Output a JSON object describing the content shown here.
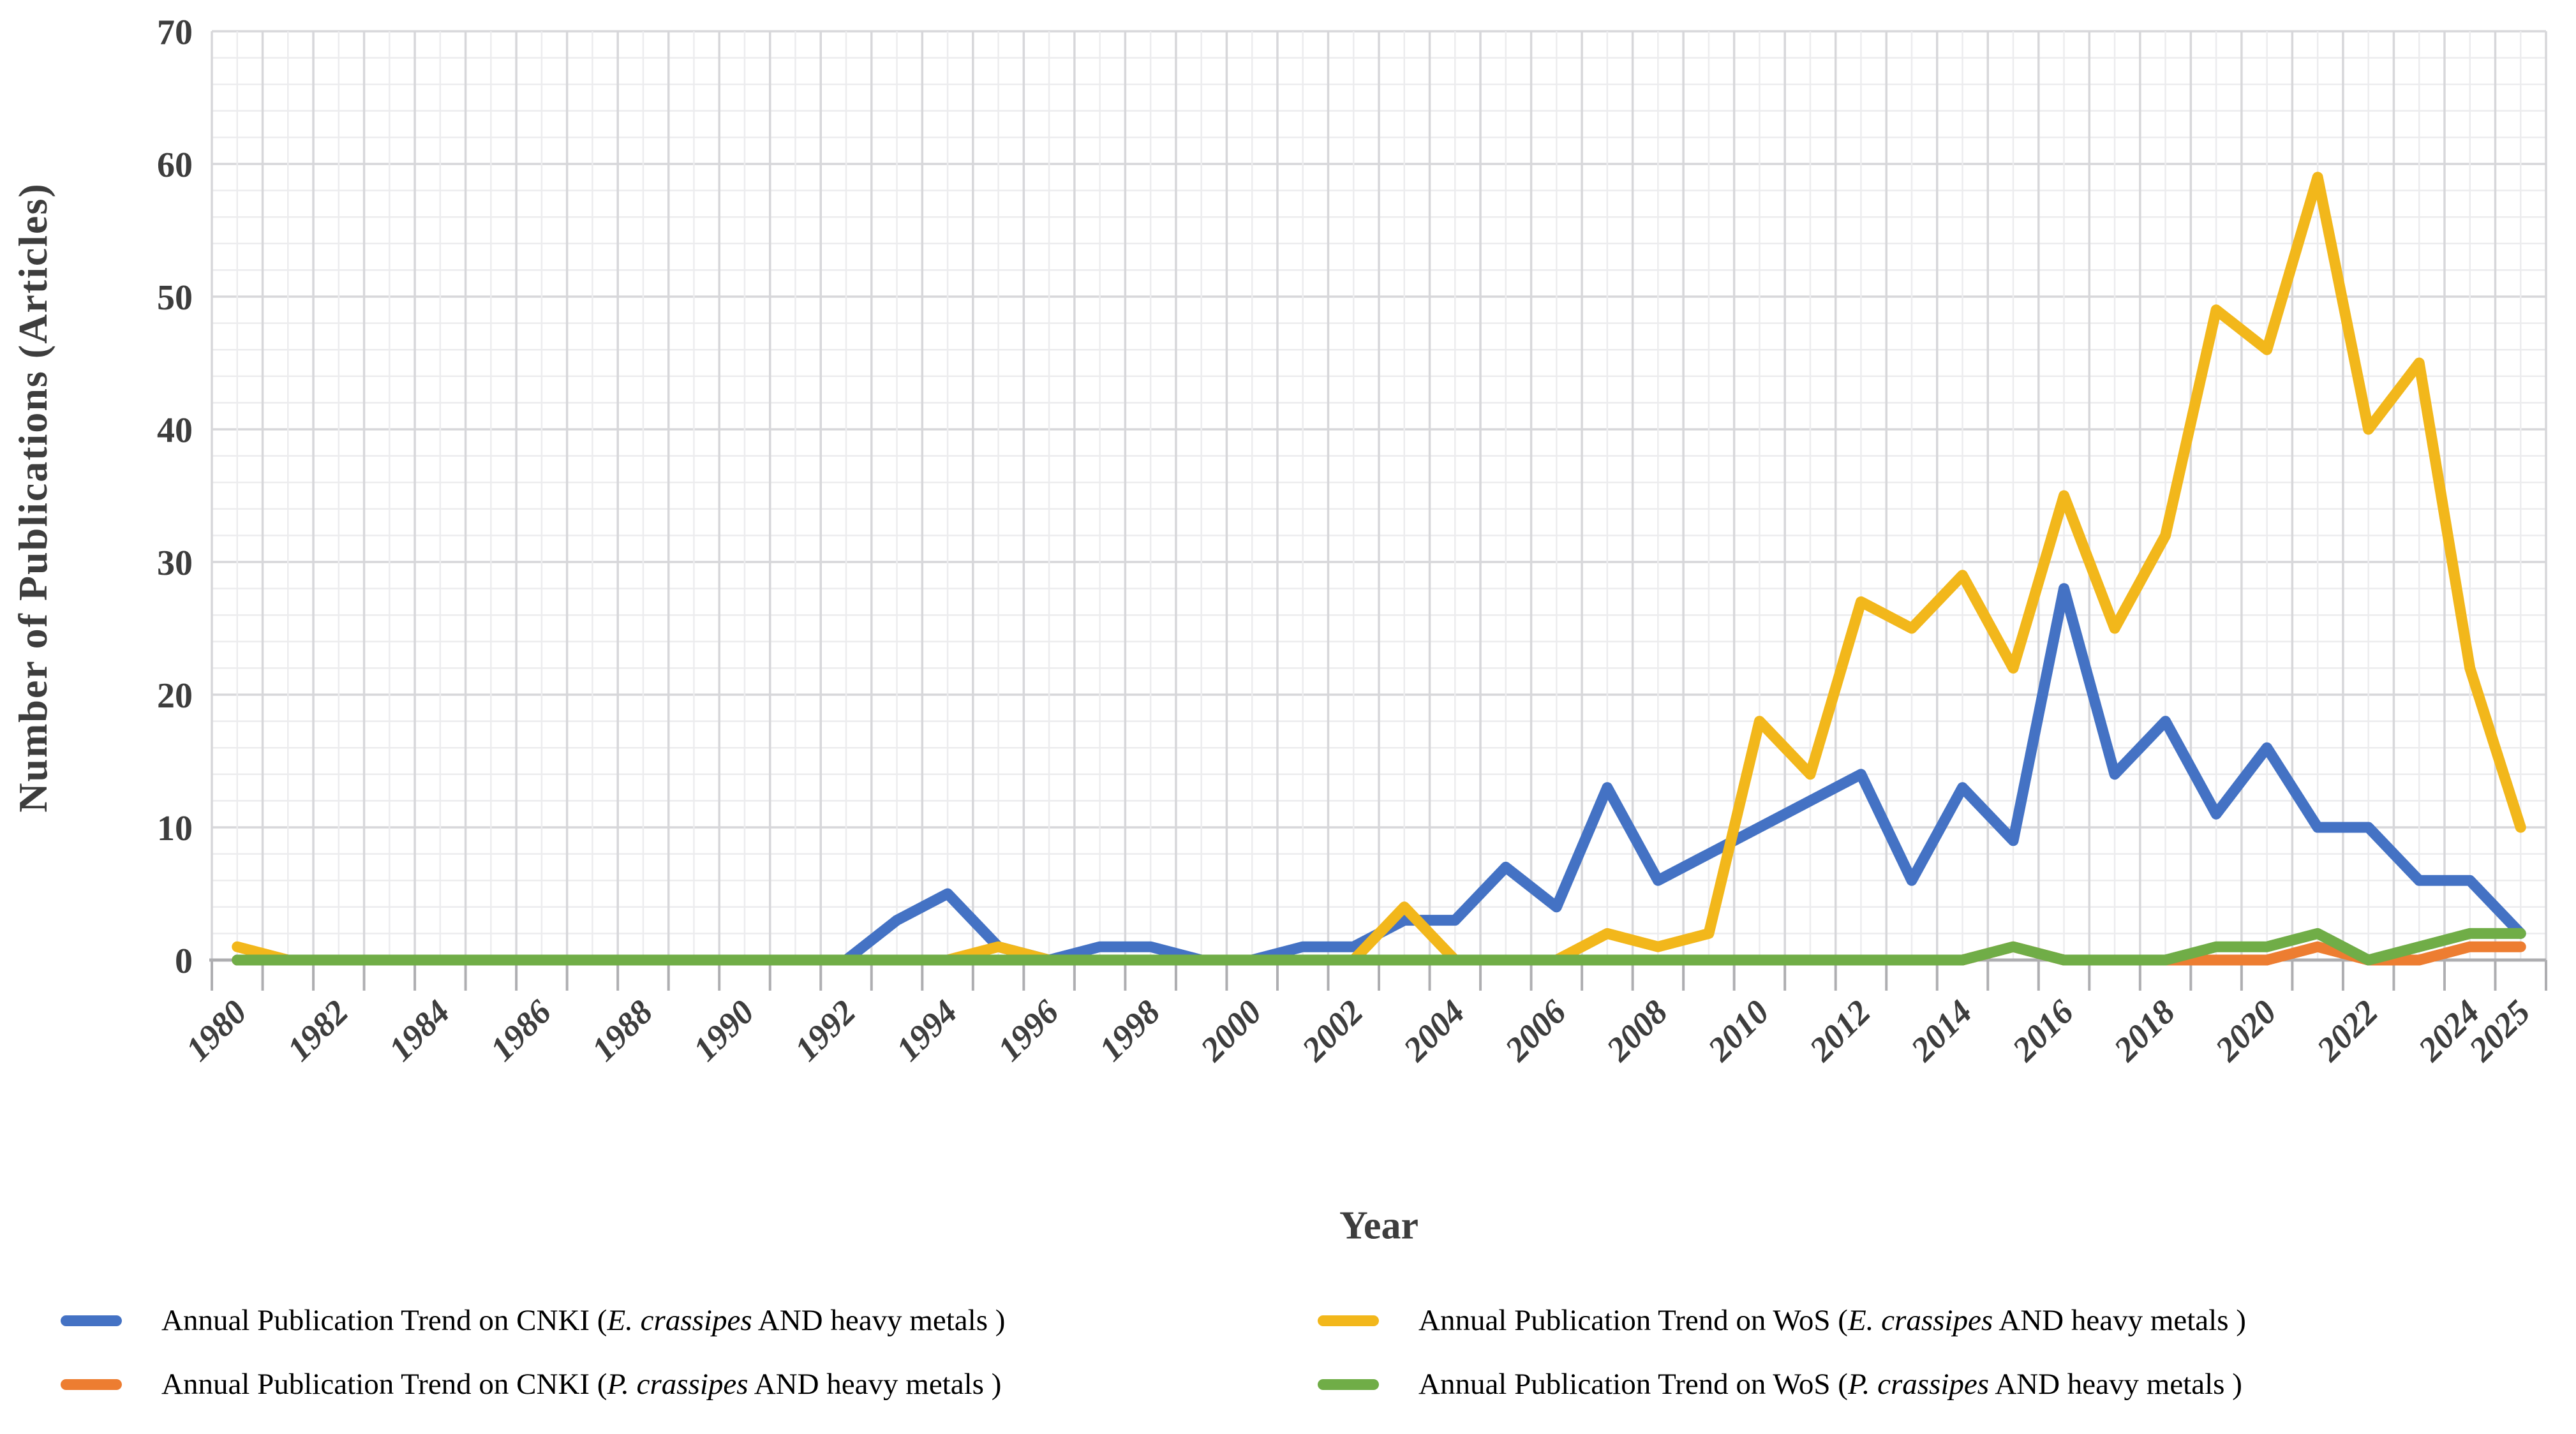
{
  "chart_data": {
    "type": "line",
    "title": "",
    "xlabel": "Year",
    "ylabel": "Number of Publications (Articles)",
    "ylim": [
      0,
      70
    ],
    "ytick_labels": [
      "0",
      "10",
      "20",
      "30",
      "40",
      "50",
      "60",
      "70"
    ],
    "xtick_labels": [
      "1980",
      "1982",
      "1984",
      "1986",
      "1988",
      "1990",
      "1992",
      "1994",
      "1996",
      "1998",
      "2000",
      "2002",
      "2004",
      "2006",
      "2008",
      "2010",
      "2012",
      "2014",
      "2016",
      "2018",
      "2020",
      "2022",
      "2024",
      "2025"
    ],
    "grid": "plaid: minor horizontal every 2 units, minor vertical every half year, majors darker",
    "legend_position": "bottom, two columns",
    "x": [
      1980,
      1981,
      1982,
      1983,
      1984,
      1985,
      1986,
      1987,
      1988,
      1989,
      1990,
      1991,
      1992,
      1993,
      1994,
      1995,
      1996,
      1997,
      1998,
      1999,
      2000,
      2001,
      2002,
      2003,
      2004,
      2005,
      2006,
      2007,
      2008,
      2009,
      2010,
      2011,
      2012,
      2013,
      2014,
      2015,
      2016,
      2017,
      2018,
      2019,
      2020,
      2021,
      2022,
      2023,
      2024,
      2025
    ],
    "series": [
      {
        "label_prefix": "Annual Publication Trend on CNKI (",
        "label_italic": "E. crassipes",
        "label_suffix": " AND heavy metals )",
        "color": "#4472C4",
        "values": [
          0,
          0,
          0,
          0,
          0,
          0,
          0,
          0,
          0,
          0,
          0,
          0,
          0,
          3,
          5,
          1,
          0,
          1,
          1,
          0,
          0,
          1,
          1,
          3,
          3,
          7,
          4,
          13,
          6,
          8,
          10,
          12,
          14,
          6,
          13,
          9,
          28,
          14,
          18,
          11,
          16,
          10,
          10,
          6,
          6,
          2
        ]
      },
      {
        "label_prefix": "Annual Publication Trend on CNKI (",
        "label_italic": "P. crassipes",
        "label_suffix": " AND heavy metals )",
        "color": "#ED7D31",
        "values": [
          0,
          0,
          0,
          0,
          0,
          0,
          0,
          0,
          0,
          0,
          0,
          0,
          0,
          0,
          0,
          0,
          0,
          0,
          0,
          0,
          0,
          0,
          0,
          0,
          0,
          0,
          0,
          0,
          0,
          0,
          0,
          0,
          0,
          0,
          0,
          1,
          0,
          0,
          0,
          0,
          0,
          1,
          0,
          0,
          1,
          1
        ]
      },
      {
        "label_prefix": "Annual Publication Trend on WoS (",
        "label_italic": "E. crassipes",
        "label_suffix": " AND heavy metals )",
        "color": "#F2B71B",
        "values": [
          1,
          0,
          0,
          0,
          0,
          0,
          0,
          0,
          0,
          0,
          0,
          0,
          0,
          0,
          0,
          1,
          0,
          0,
          0,
          0,
          0,
          0,
          0,
          4,
          0,
          0,
          0,
          2,
          1,
          2,
          18,
          14,
          27,
          25,
          29,
          22,
          35,
          25,
          32,
          49,
          46,
          59,
          40,
          45,
          22,
          10
        ]
      },
      {
        "label_prefix": "Annual Publication Trend on WoS (",
        "label_italic": "P. crassipes",
        "label_suffix": " AND heavy metals )",
        "color": "#70AD47",
        "values": [
          0,
          0,
          0,
          0,
          0,
          0,
          0,
          0,
          0,
          0,
          0,
          0,
          0,
          0,
          0,
          0,
          0,
          0,
          0,
          0,
          0,
          0,
          0,
          0,
          0,
          0,
          0,
          0,
          0,
          0,
          0,
          0,
          0,
          0,
          0,
          1,
          0,
          0,
          0,
          1,
          1,
          2,
          0,
          1,
          2,
          2
        ]
      }
    ],
    "colors": {
      "axis_text": "#3d3d3d",
      "grid_minor": "#ececee",
      "grid_major": "#d7d7da",
      "axis_line": "#aeaeb1"
    }
  }
}
